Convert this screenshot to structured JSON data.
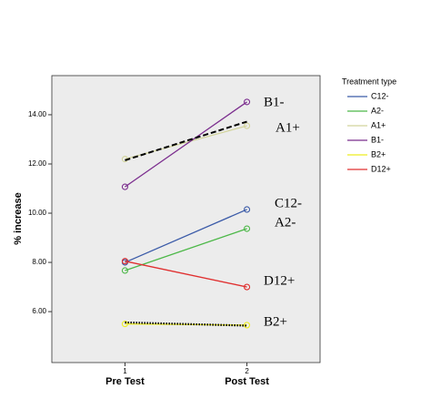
{
  "chart_data": {
    "type": "line",
    "x": [
      1,
      2
    ],
    "xlim": [
      0.4,
      2.6
    ],
    "xticks": [
      1,
      2
    ],
    "x_labels": [
      "Pre Test",
      "Post Test"
    ],
    "y_label": "% increase",
    "ylim": [
      3.93,
      15.59
    ],
    "yticks": [
      {
        "value": 6,
        "label": "6.00"
      },
      {
        "value": 8,
        "label": "8.00"
      },
      {
        "value": 10,
        "label": "10.00"
      },
      {
        "value": 12,
        "label": "12.00"
      },
      {
        "value": 14,
        "label": "14.00"
      }
    ],
    "legend_title": "Treatment type",
    "series": [
      {
        "name": "C12-",
        "color": "#3b5ba8",
        "values": [
          8.0,
          10.15
        ]
      },
      {
        "name": "A2-",
        "color": "#4cb848",
        "values": [
          7.67,
          9.37
        ]
      },
      {
        "name": "A1+",
        "color": "#d2d49c",
        "values": [
          12.2,
          13.55
        ]
      },
      {
        "name": "B1-",
        "color": "#7b2d8e",
        "values": [
          11.07,
          14.52
        ]
      },
      {
        "name": "B2+",
        "color": "#eeee22",
        "values": [
          5.5,
          5.45
        ]
      },
      {
        "name": "D12+",
        "color": "#e03030",
        "values": [
          8.05,
          7.0
        ]
      }
    ],
    "fit_lines": [
      {
        "style": "dashed",
        "values": [
          12.15,
          13.72
        ]
      },
      {
        "style": "dotted",
        "values": [
          5.56,
          5.43
        ]
      }
    ],
    "annotations": [
      "B1-",
      "A1+",
      "C12-",
      "A2-",
      "D12+",
      "B2+"
    ]
  }
}
